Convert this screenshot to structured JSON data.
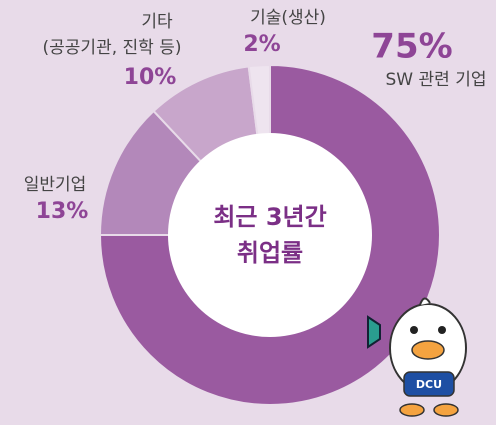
{
  "chart_data": {
    "type": "donut",
    "title": [
      "최근 3년간",
      "취업률"
    ],
    "categories": [
      "SW 관련 기업",
      "일반기업",
      [
        "기타",
        "(공공기관, 진학 등)"
      ],
      "기술(생산)"
    ],
    "values": [
      75,
      13,
      10,
      2
    ],
    "value_labels": [
      "75%",
      "13%",
      "10%",
      "2%"
    ],
    "colors": [
      "#9a5aa0",
      "#b388ba",
      "#c8a6cb",
      "#eee4ef"
    ],
    "mascot_text": "DCU"
  }
}
